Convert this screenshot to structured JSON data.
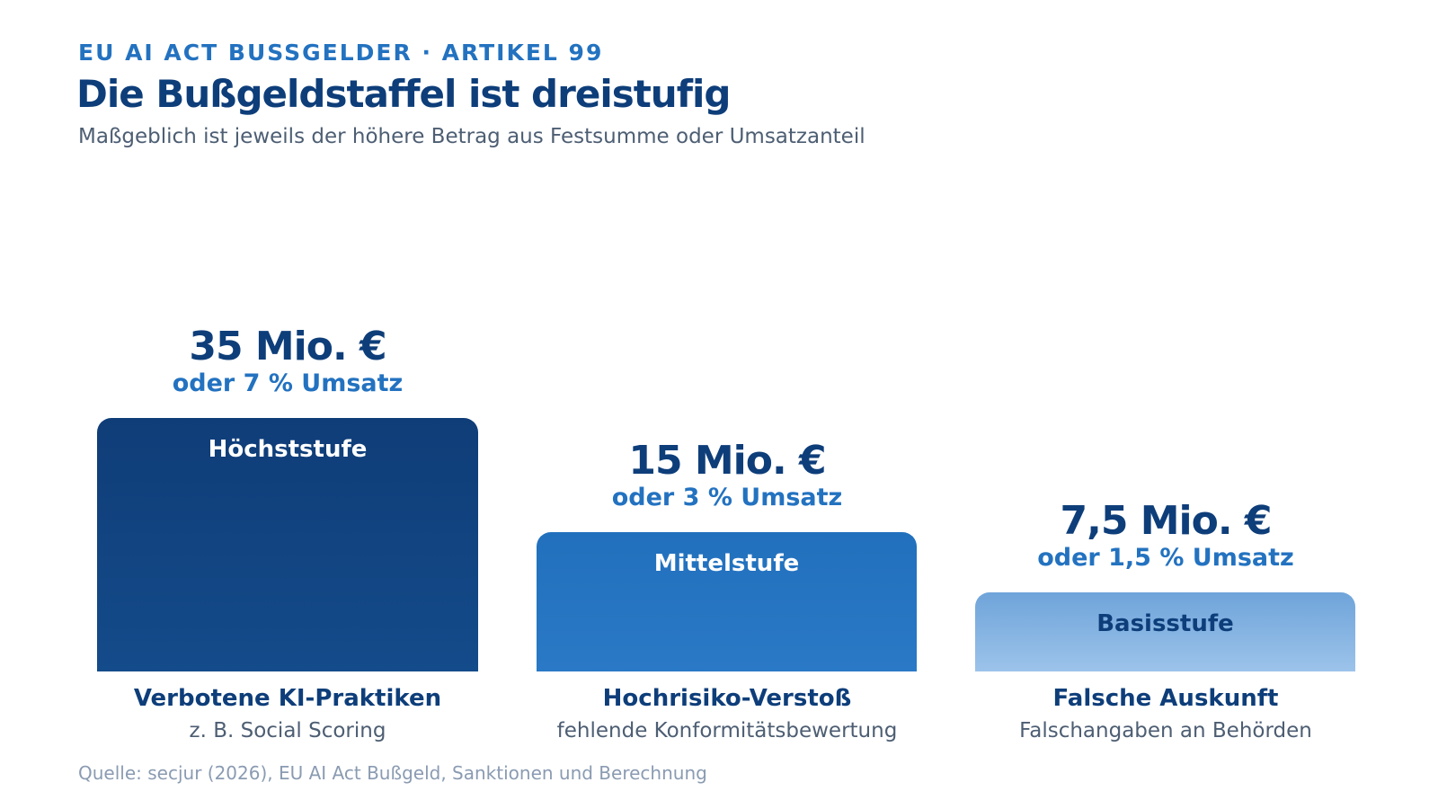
{
  "header": {
    "kicker": "EU AI ACT BUSSGELDER · ARTIKEL 99",
    "title": "Die Bußgeldstaffel ist dreistufig",
    "subtitle": "Maßgeblich ist jeweils der höhere Betrag aus Festsumme oder Umsatzanteil"
  },
  "tiers": [
    {
      "amount": "35 Mio. €",
      "share": "oder 7 % Umsatz",
      "level": "Höchststufe",
      "name": "Verbotene KI-Praktiken",
      "example": "z. B. Social Scoring"
    },
    {
      "amount": "15 Mio. €",
      "share": "oder 3 % Umsatz",
      "level": "Mittelstufe",
      "name": "Hochrisiko-Verstoß",
      "example": "fehlende Konformitätsbewertung"
    },
    {
      "amount": "7,5 Mio. €",
      "share": "oder 1,5 % Umsatz",
      "level": "Basisstufe",
      "name": "Falsche Auskunft",
      "example": "Falschangaben an Behörden"
    }
  ],
  "source": "Quelle: secjur (2026), EU AI Act Bußgeld, Sanktionen und Berechnung"
}
